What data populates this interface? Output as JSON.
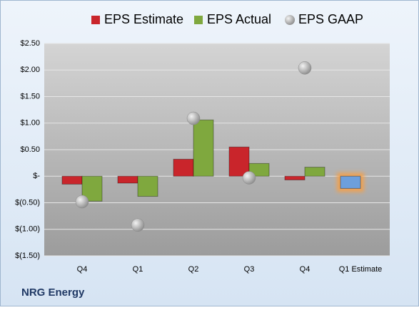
{
  "chart_data": {
    "type": "bar",
    "title": "NRG Energy",
    "categories": [
      "Q4",
      "Q1",
      "Q2",
      "Q3",
      "Q4",
      "Q1 Estimate"
    ],
    "series": [
      {
        "name": "EPS Estimate",
        "color": "#c9252b",
        "colors": [
          "#c9252b",
          "#c9252b",
          "#c9252b",
          "#c9252b",
          "#c9252b",
          "#6d9fdc"
        ],
        "values": [
          -0.15,
          -0.13,
          0.32,
          0.55,
          -0.07,
          -0.23
        ]
      },
      {
        "name": "EPS Actual",
        "color": "#7fa83e",
        "values": [
          -0.47,
          -0.38,
          1.06,
          0.24,
          0.17,
          null
        ]
      },
      {
        "name": "EPS GAAP",
        "color": "#a9a9a9",
        "marker": "circle",
        "values": [
          -0.48,
          -0.92,
          1.09,
          -0.03,
          2.04,
          null
        ]
      }
    ],
    "ylim": [
      -1.5,
      2.5
    ],
    "yticks": [
      {
        "value": -1.5,
        "label": "$(1.50)"
      },
      {
        "value": -1,
        "label": "$(1.00)"
      },
      {
        "value": -0.5,
        "label": "$(0.50)"
      },
      {
        "value": 0,
        "label": "$-"
      },
      {
        "value": 0.5,
        "label": "$0.50"
      },
      {
        "value": 1,
        "label": "$1.00"
      },
      {
        "value": 1.5,
        "label": "$1.50"
      },
      {
        "value": 2,
        "label": "$2.00"
      },
      {
        "value": 2.5,
        "label": "$2.50"
      }
    ],
    "grid": true,
    "legend": "top"
  }
}
